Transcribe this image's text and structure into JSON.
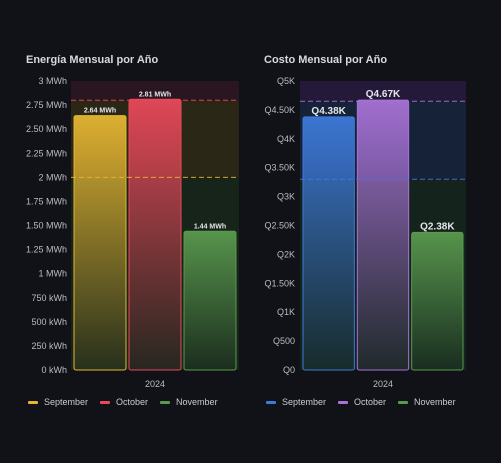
{
  "colors": {
    "background": "#111217",
    "september_energy": "#e5b632",
    "october_energy": "#e8485a",
    "november_energy": "#5a9a4e",
    "september_cost": "#3d7ad9",
    "october_cost": "#a872d6",
    "november_cost": "#5a9a4e",
    "axis_text": "#b9bcc4"
  },
  "chart_data": [
    {
      "type": "bar",
      "title": "Energía Mensual por Año",
      "categories": [
        "2024"
      ],
      "series": [
        {
          "name": "September",
          "values": [
            2.64
          ],
          "label": "2.64 MWh"
        },
        {
          "name": "October",
          "values": [
            2.81
          ],
          "label": "2.81 MWh"
        },
        {
          "name": "November",
          "values": [
            1.44
          ],
          "label": "1.44 MWh"
        }
      ],
      "ylim": [
        0,
        3
      ],
      "yticks": [
        "0 kWh",
        "250 kWh",
        "500 kWh",
        "750 kWh",
        "1 MWh",
        "1.25 MWh",
        "1.50 MWh",
        "1.75 MWh",
        "2 MWh",
        "2.25 MWh",
        "2.50 MWh",
        "2.75 MWh",
        "3 MWh"
      ],
      "ytick_values": [
        0,
        0.25,
        0.5,
        0.75,
        1,
        1.25,
        1.5,
        1.75,
        2,
        2.25,
        2.5,
        2.75,
        3
      ],
      "thresholds": [
        {
          "value": 2.0,
          "color": "#e5b632"
        },
        {
          "value": 2.8,
          "color": "#e8485a"
        }
      ],
      "legend_position": "bottom-left",
      "xlabel": "",
      "ylabel": ""
    },
    {
      "type": "bar",
      "title": "Costo Mensual por Año",
      "categories": [
        "2024"
      ],
      "series": [
        {
          "name": "September",
          "values": [
            4380
          ],
          "label": "Q4.38K"
        },
        {
          "name": "October",
          "values": [
            4670
          ],
          "label": "Q4.67K"
        },
        {
          "name": "November",
          "values": [
            2380
          ],
          "label": "Q2.38K"
        }
      ],
      "ylim": [
        0,
        5000
      ],
      "yticks": [
        "Q0",
        "Q500",
        "Q1K",
        "Q1.50K",
        "Q2K",
        "Q2.50K",
        "Q3K",
        "Q3.50K",
        "Q4K",
        "Q4.50K",
        "Q5K"
      ],
      "ytick_values": [
        0,
        500,
        1000,
        1500,
        2000,
        2500,
        3000,
        3500,
        4000,
        4500,
        5000
      ],
      "thresholds": [
        {
          "value": 3300,
          "color": "#3d7ad9"
        },
        {
          "value": 4650,
          "color": "#a872d6"
        }
      ],
      "legend_position": "bottom-left",
      "xlabel": "",
      "ylabel": ""
    }
  ]
}
